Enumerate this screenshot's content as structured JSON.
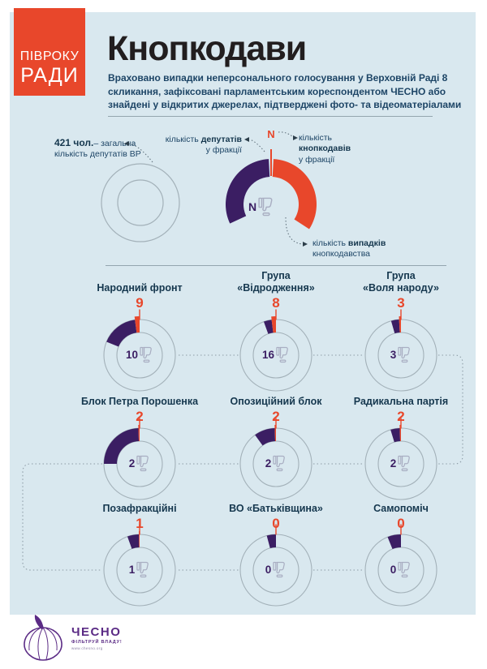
{
  "badge": {
    "line1": "ПІВРОКУ",
    "line2": "РАДИ"
  },
  "header": {
    "title": "Кнопкодави",
    "subtitle": "Враховано випадки неперсонального голосування у Верховній Раді 8 скликання, зафіксовані парламентським кореспондентом ЧЕСНО або знайдені у відкритих джерелах, підтверджені фото- та відеоматеріалами"
  },
  "legend": {
    "total": {
      "bold": "421 чол.",
      "rest": "– загальна",
      "line2": "кількість депутатів ВР"
    },
    "deputies": {
      "line1_pre": "кількість ",
      "line1_bold": "депутатів",
      "line2": "у фракції"
    },
    "knopko": {
      "line1": "кількість",
      "line2_bold": "кнопкодавів",
      "line3": "у фракції"
    },
    "cases": {
      "line1_pre": "кількість ",
      "line1_bold": "випадків",
      "line2": "кнопкодавства"
    },
    "n_top": "N",
    "n_center": "N"
  },
  "colors": {
    "accent_red": "#e8472b",
    "accent_purple": "#3b1e63",
    "panel_bg": "#d9e8ef",
    "navy_text": "#1d4566",
    "ring_gray": "#a3b1b9",
    "dotted_gray": "#8d9ca6",
    "icon_gray": "#a9aec2",
    "logo_purple": "#5b2b85"
  },
  "chart_data": {
    "type": "donut-grid",
    "total_deputies": 421,
    "value_semantics": {
      "red_number_above": "кількість кнопкодавів у фракції",
      "purple_arc": "кількість депутатів у фракції",
      "center_number": "кількість випадків кнопкодавства"
    },
    "factions": [
      {
        "name": "Народний фронт",
        "knopkodavy": 9,
        "cases": 10,
        "deputies_deg": 68,
        "red_deg": 7.5
      },
      {
        "name": "Група\n«Відродження»",
        "knopkodavy": 8,
        "cases": 16,
        "deputies_deg": 20,
        "red_deg": 7
      },
      {
        "name": "Група\n«Воля народу»",
        "knopkodavy": 3,
        "cases": 3,
        "deputies_deg": 16,
        "red_deg": 3
      },
      {
        "name": "Блок Петра Порошенка",
        "knopkodavy": 2,
        "cases": 2,
        "deputies_deg": 90,
        "red_deg": 2
      },
      {
        "name": "Опозиційний блок",
        "knopkodavy": 2,
        "cases": 2,
        "deputies_deg": 36,
        "red_deg": 2
      },
      {
        "name": "Радикальна партія",
        "knopkodavy": 2,
        "cases": 2,
        "deputies_deg": 17,
        "red_deg": 2
      },
      {
        "name": "Позафракційні",
        "knopkodavy": 1,
        "cases": 1,
        "deputies_deg": 20,
        "red_deg": 1.2
      },
      {
        "name": "ВО «Батьківщина»",
        "knopkodavy": 0,
        "cases": 0,
        "deputies_deg": 15,
        "red_deg": 0
      },
      {
        "name": "Самопоміч",
        "knopkodavy": 0,
        "cases": 0,
        "deputies_deg": 22,
        "red_deg": 0
      }
    ]
  },
  "footer": {
    "brand": "ЧЕСНО",
    "tagline": "ФІЛЬТРУЙ ВЛАДУ!",
    "url": "www.chesno.org"
  }
}
